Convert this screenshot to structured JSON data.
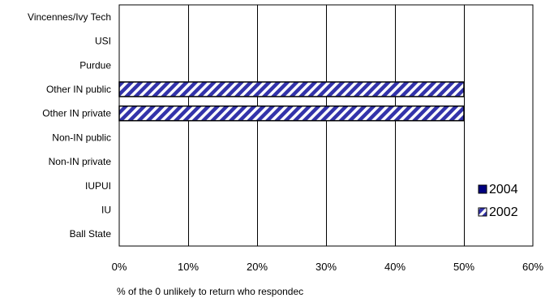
{
  "chart_data": {
    "type": "bar",
    "orientation": "horizontal",
    "categories": [
      "Vincennes/Ivy Tech",
      "USI",
      "Purdue",
      "Other IN public",
      "Other IN private",
      "Non-IN public",
      "Non-IN private",
      "IUPUI",
      "IU",
      "Ball State"
    ],
    "series": [
      {
        "name": "2004",
        "values": [
          0,
          0,
          0,
          0,
          0,
          0,
          0,
          0,
          0,
          0
        ],
        "color": "#000080",
        "pattern": "solid"
      },
      {
        "name": "2002",
        "values": [
          0,
          0,
          0,
          50,
          50,
          0,
          0,
          0,
          0,
          0
        ],
        "color": "#3333aa",
        "pattern": "diagonal-stripes"
      }
    ],
    "xlim": [
      0,
      60
    ],
    "x_ticks": [
      0,
      10,
      20,
      30,
      40,
      50,
      60
    ],
    "x_tick_labels": [
      "0%",
      "10%",
      "20%",
      "30%",
      "40%",
      "50%",
      "60%"
    ],
    "xlabel": "% of the 0 unlikely to return who respondec",
    "grid": true,
    "legend_position": "right"
  }
}
